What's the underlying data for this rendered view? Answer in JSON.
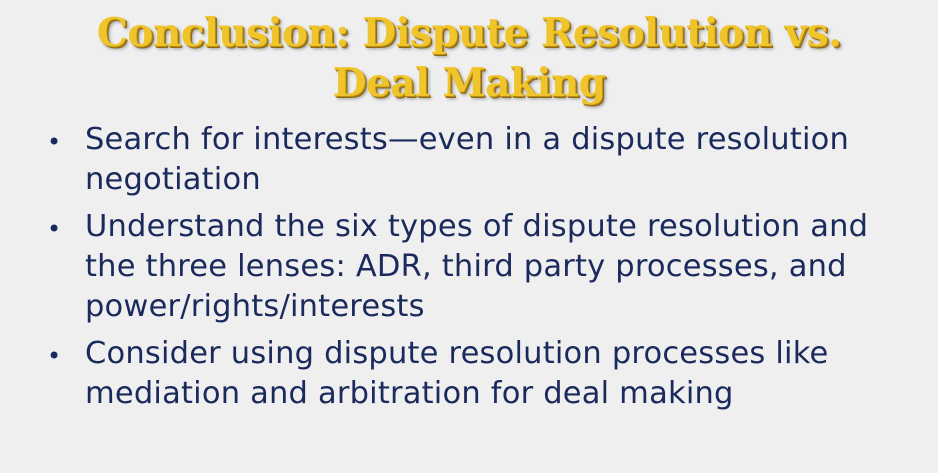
{
  "title": {
    "line1": "Conclusion:  Dispute Resolution vs.",
    "line2": "Deal Making"
  },
  "bullet_glyph": "•",
  "bullets": [
    {
      "text": "Search for interests—even in a dispute resolution negotiation"
    },
    {
      "text": "Understand the six types of dispute resolution and the three lenses:  ADR, third party processes, and power/rights/interests"
    },
    {
      "text": "Consider using dispute resolution processes like mediation and arbitration for deal making"
    }
  ],
  "colors": {
    "background": "#efefef",
    "title": "#f0c52c",
    "body_text": "#1b2a5c"
  }
}
